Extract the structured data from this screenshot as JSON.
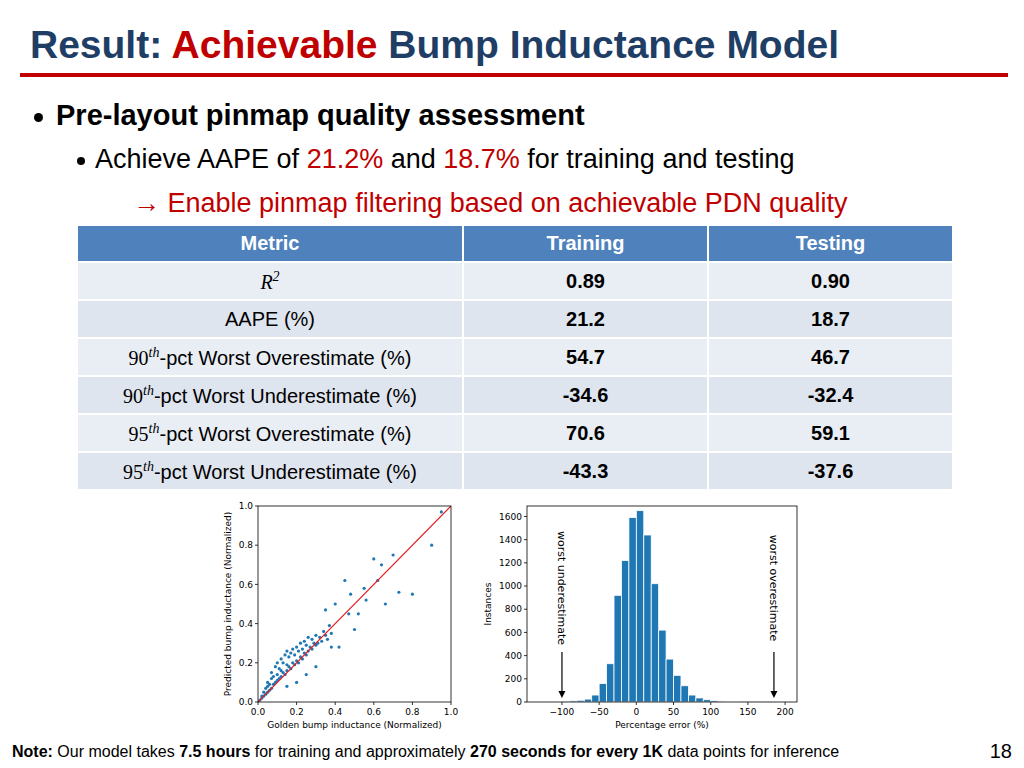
{
  "slide": {
    "title": [
      {
        "text": "Result: ",
        "color": "#1f3e66"
      },
      {
        "text": "Achievable",
        "color": "#c00000"
      },
      {
        "text": " Bump Inductance Model",
        "color": "#1f3e66"
      }
    ],
    "bullet": "Pre-layout pinmap quality assessment",
    "sub_bullet": [
      {
        "text": "Achieve AAPE of ",
        "color": "#000000"
      },
      {
        "text": "21.2%",
        "color": "#c00000"
      },
      {
        "text": " and ",
        "color": "#000000"
      },
      {
        "text": "18.7%",
        "color": "#c00000"
      },
      {
        "text": " for training and testing",
        "color": "#000000"
      }
    ],
    "arrow_line": {
      "text": "→ Enable pinmap filtering based on achievable PDN quality",
      "color": "#c00000"
    },
    "table": {
      "header": [
        "Metric",
        "Training",
        "Testing"
      ],
      "rows": [
        [
          {
            "base": "R",
            "sup": "2"
          },
          "0.89",
          "0.90"
        ],
        [
          {
            "base": "AAPE (%)"
          },
          "21.2",
          "18.7"
        ],
        [
          {
            "base": "90",
            "sup": "th",
            "rest": "-pct Worst Overestimate (%)"
          },
          "54.7",
          "46.7"
        ],
        [
          {
            "base": "90",
            "sup": "th",
            "rest": "-pct Worst Underestimate (%)"
          },
          "-34.6",
          "-32.4"
        ],
        [
          {
            "base": "95",
            "sup": "th",
            "rest": "-pct Worst Overestimate (%)"
          },
          "70.6",
          "59.1"
        ],
        [
          {
            "base": "95",
            "sup": "th",
            "rest": "-pct Worst Underestimate (%)"
          },
          "-43.3",
          "-37.6"
        ]
      ]
    },
    "note": [
      {
        "text": "Note:",
        "bold": true
      },
      {
        "text": " Our model takes ",
        "bold": false
      },
      {
        "text": "7.5 hours",
        "bold": true
      },
      {
        "text": " for training and approximately ",
        "bold": false
      },
      {
        "text": "270 seconds for every 1K",
        "bold": true
      },
      {
        "text": " data points for inference",
        "bold": false
      }
    ],
    "page_number": "18"
  },
  "chart_data": [
    {
      "type": "scatter",
      "x_label": "Golden bump inductance (Normalized)",
      "y_label": "Predicted bump inductance (Normalized)",
      "color": "#1f77b4",
      "marker": "circle",
      "xlim": [
        0,
        1
      ],
      "ylim": [
        0,
        1
      ],
      "xticks": [
        {
          "value": 0,
          "label": "0.0"
        },
        {
          "value": 0.2,
          "label": "0.2"
        },
        {
          "value": 0.4,
          "label": "0.4"
        },
        {
          "value": 0.6,
          "label": "0.6"
        },
        {
          "value": 0.8,
          "label": "0.8"
        },
        {
          "value": 1,
          "label": "1.0"
        }
      ],
      "yticks": [
        {
          "value": 0,
          "label": "0.0"
        },
        {
          "value": 0.2,
          "label": "0.2"
        },
        {
          "value": 0.4,
          "label": "0.4"
        },
        {
          "value": 0.6,
          "label": "0.6"
        },
        {
          "value": 0.8,
          "label": "0.8"
        },
        {
          "value": 1,
          "label": "1.0"
        }
      ],
      "x": [
        0.01,
        0.02,
        0.02,
        0.03,
        0.03,
        0.04,
        0.04,
        0.05,
        0.05,
        0.05,
        0.06,
        0.06,
        0.07,
        0.07,
        0.07,
        0.08,
        0.08,
        0.09,
        0.09,
        0.1,
        0.1,
        0.1,
        0.11,
        0.11,
        0.12,
        0.12,
        0.12,
        0.13,
        0.13,
        0.14,
        0.14,
        0.15,
        0.15,
        0.15,
        0.16,
        0.16,
        0.17,
        0.17,
        0.18,
        0.18,
        0.19,
        0.19,
        0.2,
        0.2,
        0.21,
        0.21,
        0.22,
        0.22,
        0.23,
        0.23,
        0.24,
        0.24,
        0.25,
        0.25,
        0.26,
        0.26,
        0.27,
        0.28,
        0.28,
        0.29,
        0.3,
        0.3,
        0.31,
        0.32,
        0.33,
        0.34,
        0.35,
        0.36,
        0.37,
        0.38,
        0.6,
        0.62,
        0.55,
        0.73,
        0.8,
        0.9,
        0.95,
        0.45,
        0.48,
        0.5,
        0.56,
        0.47,
        0.4,
        0.42,
        0.38,
        0.52,
        0.66,
        0.7,
        0.35,
        0.64,
        0.2,
        0.15,
        0.3,
        0.25
      ],
      "values": [
        0.01,
        0.03,
        0.02,
        0.05,
        0.03,
        0.04,
        0.07,
        0.05,
        0.08,
        0.1,
        0.06,
        0.09,
        0.07,
        0.12,
        0.15,
        0.09,
        0.13,
        0.1,
        0.18,
        0.11,
        0.14,
        0.2,
        0.12,
        0.17,
        0.13,
        0.16,
        0.22,
        0.15,
        0.2,
        0.14,
        0.24,
        0.16,
        0.19,
        0.26,
        0.18,
        0.23,
        0.17,
        0.25,
        0.2,
        0.27,
        0.19,
        0.24,
        0.21,
        0.28,
        0.2,
        0.26,
        0.23,
        0.3,
        0.22,
        0.27,
        0.25,
        0.31,
        0.24,
        0.29,
        0.26,
        0.33,
        0.28,
        0.27,
        0.32,
        0.3,
        0.29,
        0.34,
        0.3,
        0.33,
        0.31,
        0.36,
        0.34,
        0.32,
        0.39,
        0.35,
        0.73,
        0.62,
        0.58,
        0.56,
        0.55,
        0.8,
        0.97,
        0.62,
        0.55,
        0.37,
        0.52,
        0.45,
        0.5,
        0.28,
        0.28,
        0.45,
        0.5,
        0.75,
        0.47,
        0.7,
        0.1,
        0.08,
        0.18,
        0.14
      ]
    },
    {
      "type": "histogram",
      "x_label": "Percentage error (%)",
      "y_label": "Instances",
      "color": "#1f77b4",
      "bins": [
        -110,
        -100,
        -90,
        -80,
        -70,
        -60,
        -50,
        -40,
        -30,
        -20,
        -10,
        0,
        10,
        20,
        30,
        40,
        50,
        60,
        70,
        80,
        90,
        100,
        110,
        120,
        130,
        140,
        150,
        160,
        170,
        180,
        190
      ],
      "values": [
        5,
        8,
        10,
        15,
        25,
        60,
        160,
        330,
        920,
        1220,
        1590,
        1650,
        1440,
        1020,
        620,
        370,
        230,
        140,
        60,
        35,
        20,
        12,
        8,
        5,
        4,
        3,
        2,
        2,
        1,
        1
      ],
      "xlim": [
        -147,
        216
      ],
      "ylim": [
        0,
        1690
      ],
      "xticks": [
        {
          "value": -100,
          "label": "−100"
        },
        {
          "value": -50,
          "label": "−50"
        },
        0,
        50,
        100,
        150,
        200
      ],
      "yticks": [
        0,
        200,
        400,
        600,
        800,
        1000,
        1200,
        1400,
        1600
      ],
      "annotations": [
        {
          "text": "worst underestimate",
          "x": -100
        },
        {
          "text": "worst overestimate",
          "x": 185
        }
      ]
    }
  ]
}
